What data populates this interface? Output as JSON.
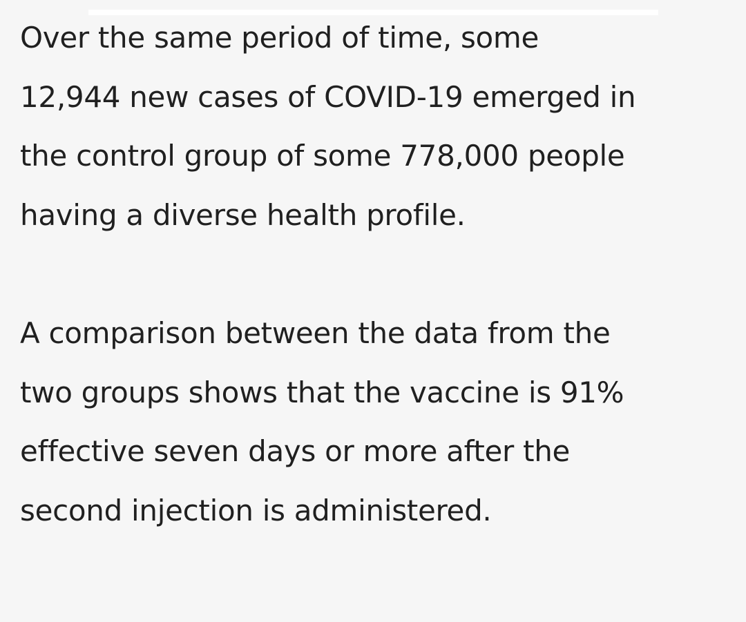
{
  "article": {
    "paragraphs": [
      {
        "lines": [
          "Over the same period of time, some",
          "12,944 new cases of COVID-19 emerged in",
          "the control group of some 778,000 people",
          "having a diverse health profile."
        ]
      },
      {
        "lines": [
          "A comparison between the data from the",
          "two groups shows that the vaccine is 91%",
          "effective seven days or more after the",
          "second injection is administered."
        ]
      }
    ]
  }
}
